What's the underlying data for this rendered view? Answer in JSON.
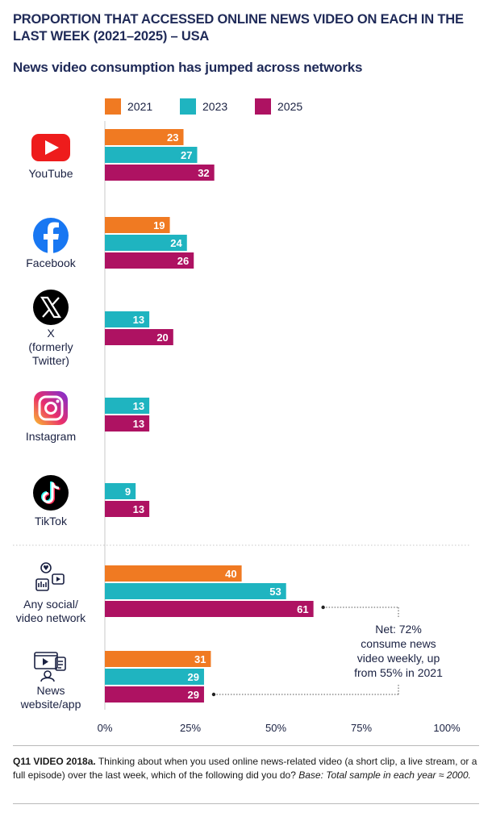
{
  "title": "PROPORTION THAT ACCESSED ONLINE NEWS VIDEO ON EACH IN THE LAST WEEK (2021–2025) – USA",
  "subtitle": "News video consumption has jumped across networks",
  "chart_data": {
    "type": "bar",
    "orientation": "horizontal",
    "categories": [
      "YouTube",
      "Facebook",
      "X (formerly Twitter)",
      "Instagram",
      "TikTok",
      "Any social/ video network",
      "News website/app"
    ],
    "series": [
      {
        "name": "2021",
        "color": "#f07a22",
        "values": [
          23,
          19,
          null,
          null,
          null,
          40,
          31
        ]
      },
      {
        "name": "2023",
        "color": "#1fb4c0",
        "values": [
          27,
          24,
          13,
          13,
          9,
          53,
          29
        ]
      },
      {
        "name": "2025",
        "color": "#ae1262",
        "values": [
          32,
          26,
          20,
          13,
          13,
          61,
          29
        ]
      }
    ],
    "xlim": [
      0,
      100
    ],
    "x_ticks": [
      "0%",
      "25%",
      "50%",
      "75%",
      "100%"
    ],
    "legend_position": "top",
    "annotation": "Net: 72% consume news video weekly, up from 55% in 2021",
    "icons": [
      "youtube-icon",
      "facebook-icon",
      "x-icon",
      "instagram-icon",
      "tiktok-icon",
      "social-network-icon",
      "news-website-icon"
    ]
  },
  "footnote": {
    "question": "Q11 VIDEO 2018a.",
    "text": " Thinking about when you used online news-related video (a short clip, a live stream, or a full episode) over the last week, which of the following did you do? ",
    "base": "Base: Total sample in each year ≈ 2000."
  }
}
